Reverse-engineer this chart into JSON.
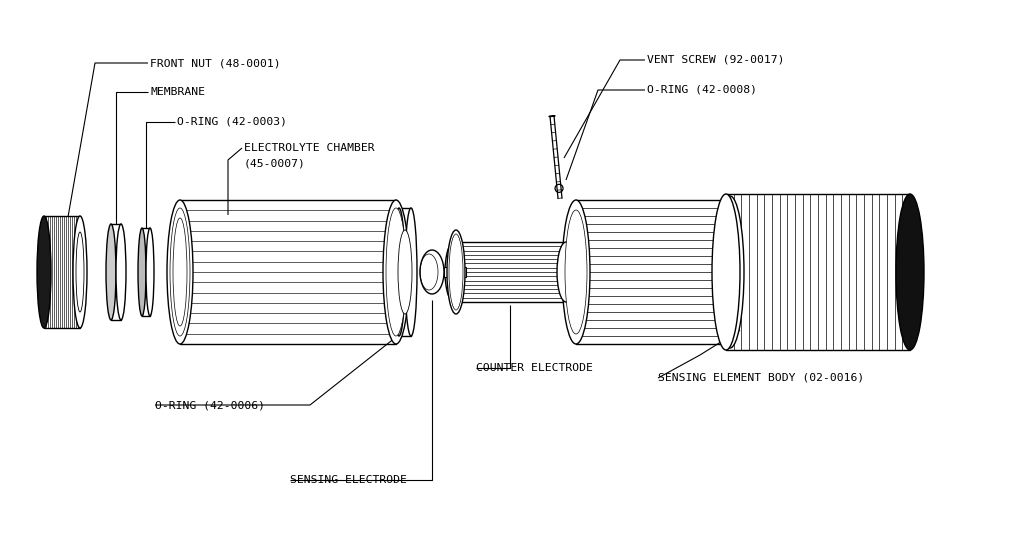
{
  "bg_color": "#ffffff",
  "line_color": "#000000",
  "labels": {
    "front_nut": "FRONT NUT (48-0001)",
    "membrane": "MEMBRANE",
    "oring_3": "O-RING (42-0003)",
    "electrolyte_1": "ELECTROLYTE CHAMBER",
    "electrolyte_2": "(45-0007)",
    "oring_6": "O-RING (42-0006)",
    "sensing_electrode": "SENSING ELECTRODE",
    "counter_electrode": "COUNTER ELECTRODE",
    "sensing_body": "SENSING ELEMENT BODY (02-0016)",
    "vent_screw": "VENT SCREW (92-0017)",
    "oring_8": "O-RING (42-0008)"
  },
  "figsize": [
    10.21,
    5.44
  ],
  "dpi": 100
}
